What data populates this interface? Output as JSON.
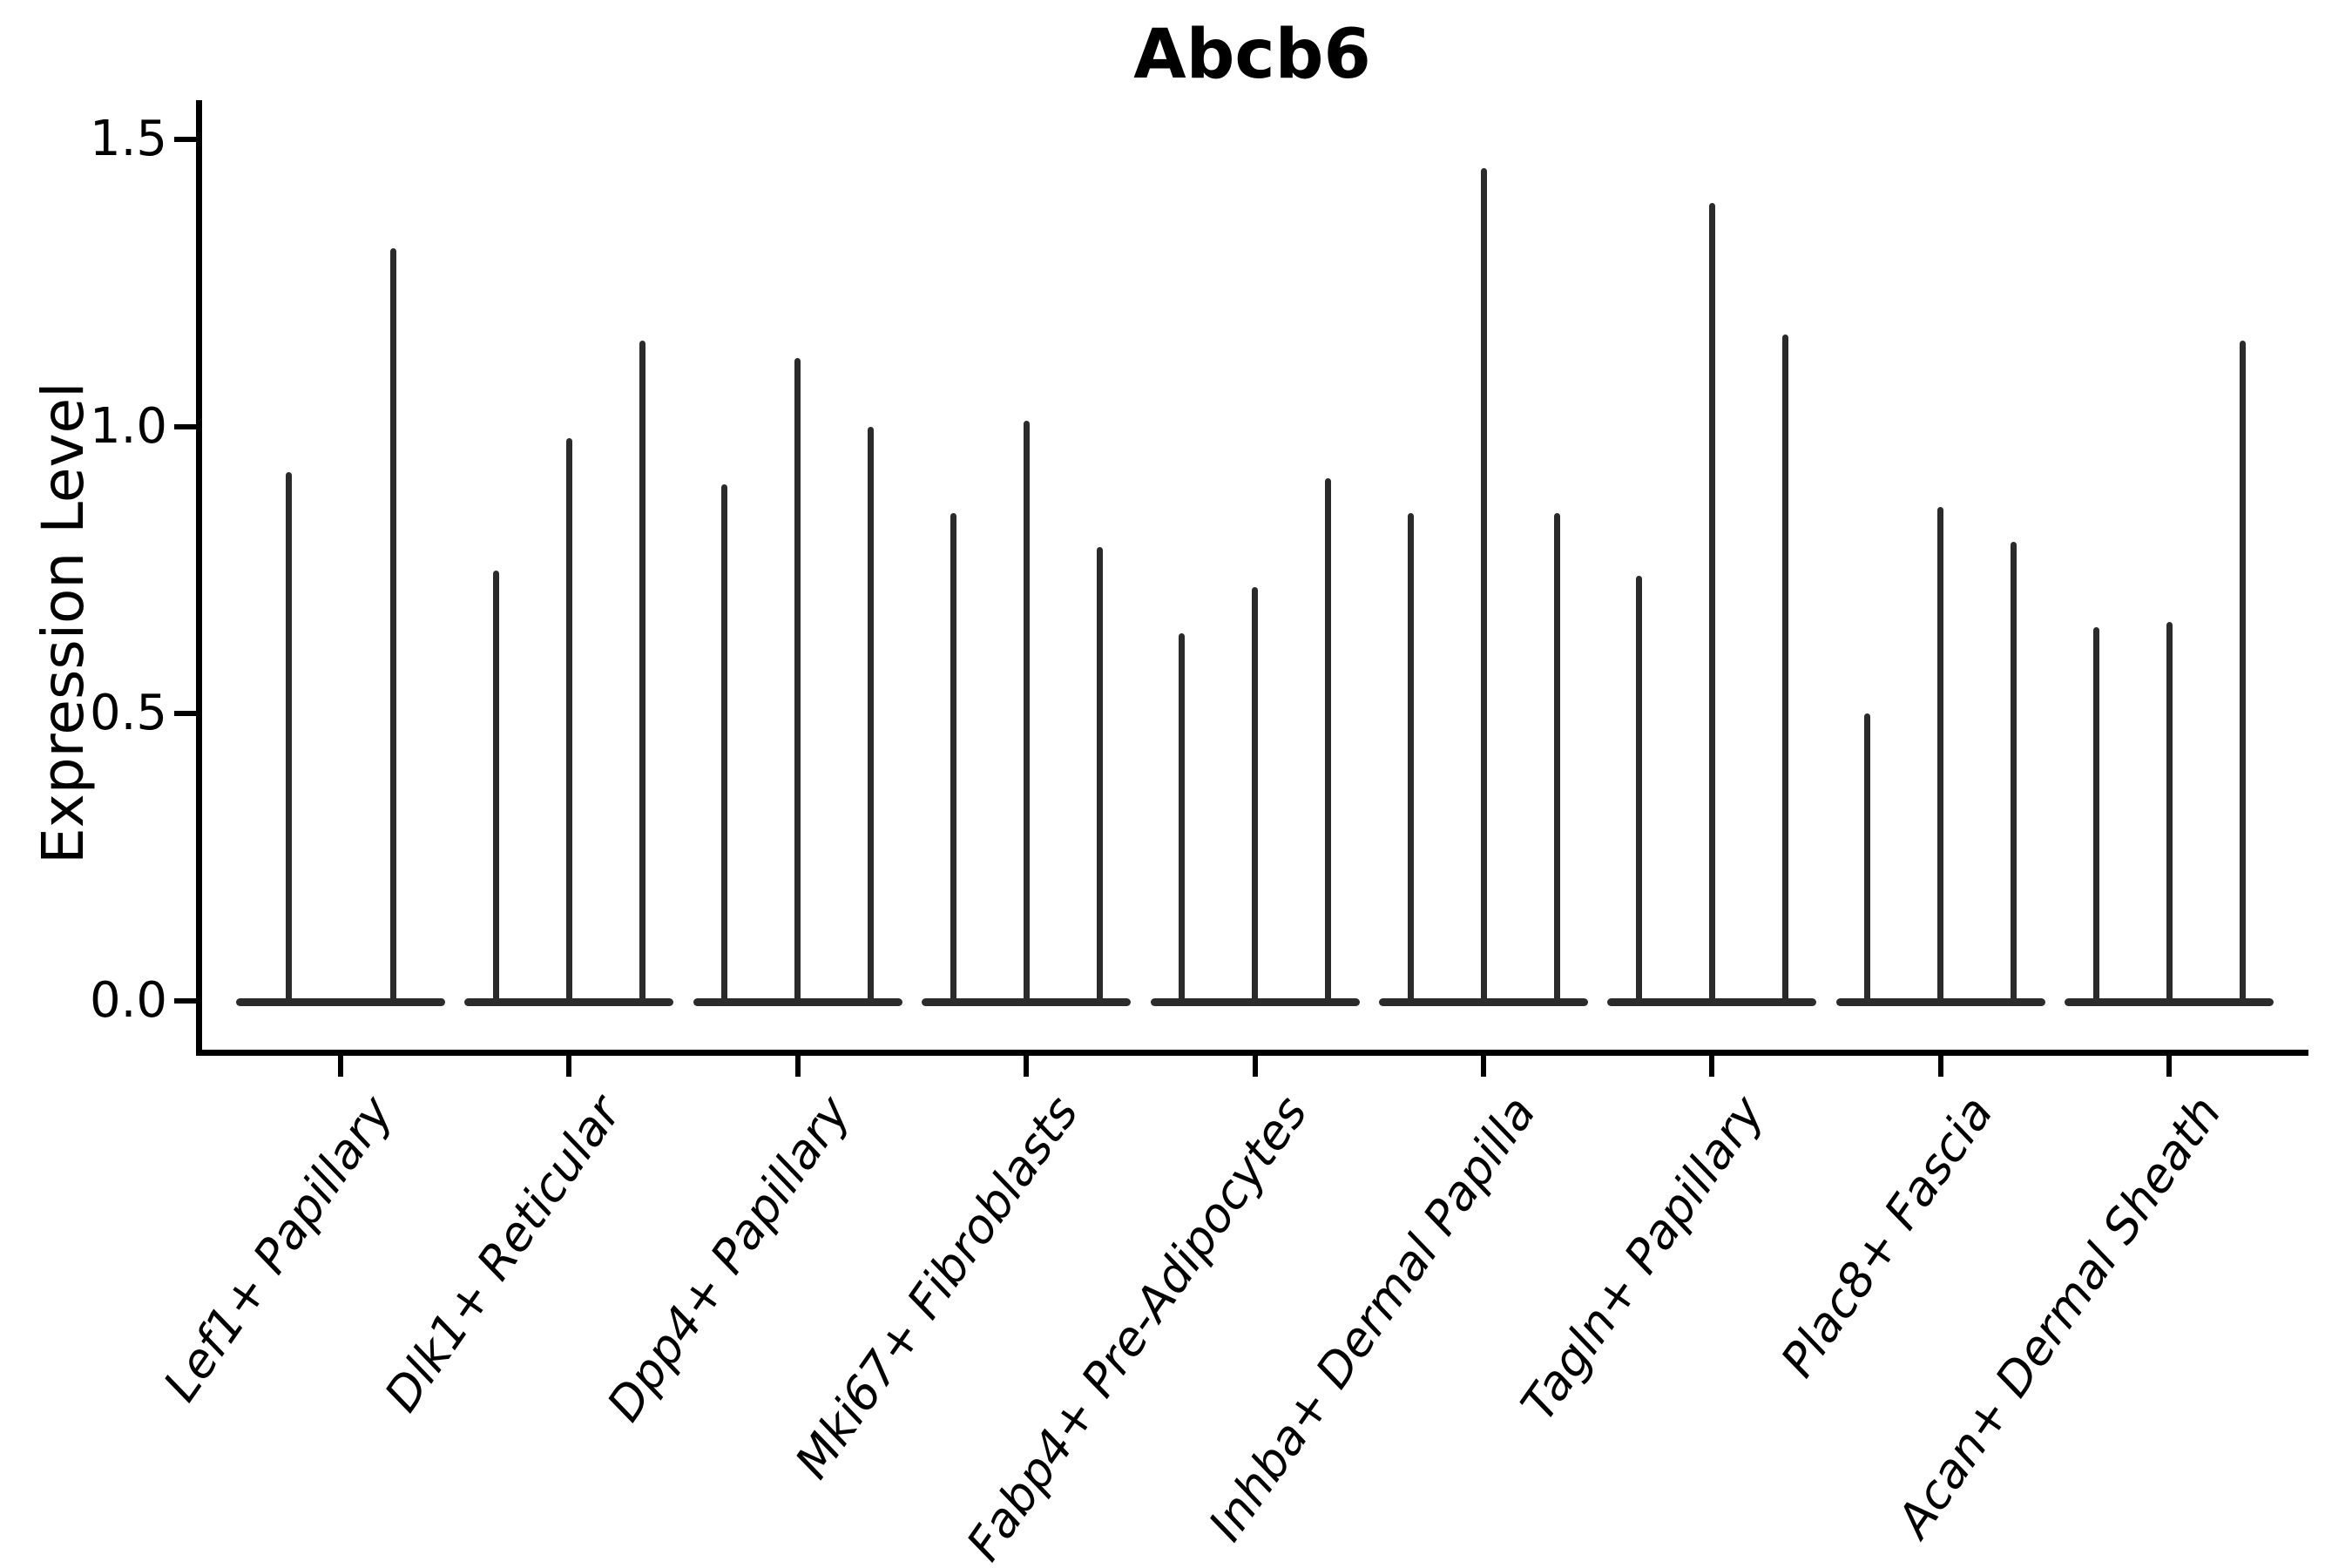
{
  "chart_data": {
    "type": "violin",
    "title": "Abcb6",
    "ylabel": "Expression Level",
    "xlabel": "",
    "ylim": [
      0,
      1.56
    ],
    "yticks": [
      0.0,
      0.5,
      1.0,
      1.5
    ],
    "ytick_labels": [
      "0.0",
      "0.5",
      "1.0",
      "1.5"
    ],
    "grid": "off",
    "legend": "none",
    "spike_color": "#2b2b2b",
    "categories": [
      "Lef1+ Papillary",
      "Dlk1+ Reticular",
      "Dpp4+ Papillary",
      "Mki67+ Fibroblasts",
      "Fabp4+ Pre-Adipocytes",
      "Inhba+ Dermal Papilla",
      "Tagln+ Papillary",
      "Plac8+ Fascia",
      "Acan+ Dermal Sheath"
    ],
    "groups": [
      {
        "category": "Lef1+ Papillary",
        "violin_peaks": [
          0.92,
          1.31
        ]
      },
      {
        "category": "Dlk1+ Reticular",
        "violin_peaks": [
          0.75,
          0.98,
          1.15
        ]
      },
      {
        "category": "Dpp4+ Papillary",
        "violin_peaks": [
          0.9,
          1.12,
          1.0
        ]
      },
      {
        "category": "Mki67+ Fibroblasts",
        "violin_peaks": [
          0.85,
          1.01,
          0.79
        ]
      },
      {
        "category": "Fabp4+ Pre-Adipocytes",
        "violin_peaks": [
          0.64,
          0.72,
          0.91
        ]
      },
      {
        "category": "Inhba+ Dermal Papilla",
        "violin_peaks": [
          0.85,
          1.45,
          0.85
        ]
      },
      {
        "category": "Tagln+ Papillary",
        "violin_peaks": [
          0.74,
          1.39,
          1.16
        ]
      },
      {
        "category": "Plac8+ Fascia",
        "violin_peaks": [
          0.5,
          0.86,
          0.8
        ]
      },
      {
        "category": "Acan+ Dermal Sheath",
        "violin_peaks": [
          0.65,
          0.66,
          1.15
        ]
      }
    ],
    "note": "Violin plot; most values at 0 so each violin collapses to a flat base at 0 with a thin spike up to its maximum expression value."
  }
}
